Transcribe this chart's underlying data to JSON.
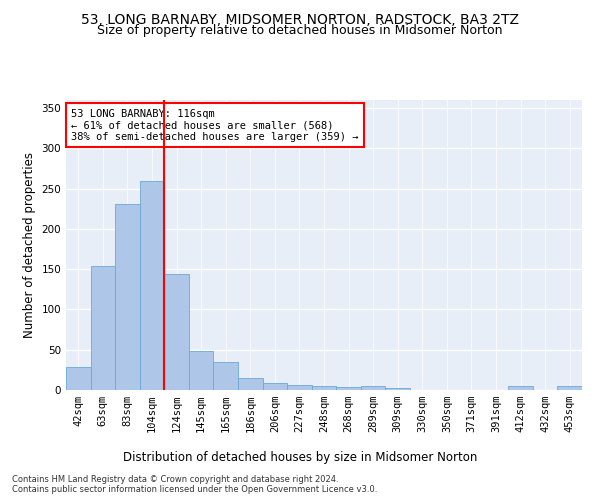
{
  "title": "53, LONG BARNABY, MIDSOMER NORTON, RADSTOCK, BA3 2TZ",
  "subtitle": "Size of property relative to detached houses in Midsomer Norton",
  "xlabel": "Distribution of detached houses by size in Midsomer Norton",
  "ylabel": "Number of detached properties",
  "categories": [
    "42sqm",
    "63sqm",
    "83sqm",
    "104sqm",
    "124sqm",
    "145sqm",
    "165sqm",
    "186sqm",
    "206sqm",
    "227sqm",
    "248sqm",
    "268sqm",
    "289sqm",
    "309sqm",
    "330sqm",
    "350sqm",
    "371sqm",
    "391sqm",
    "412sqm",
    "432sqm",
    "453sqm"
  ],
  "values": [
    28,
    154,
    231,
    260,
    144,
    49,
    35,
    15,
    9,
    6,
    5,
    4,
    5,
    2,
    0,
    0,
    0,
    0,
    5,
    0,
    5
  ],
  "bar_color": "#aec6e8",
  "bar_edge_color": "#6aaad4",
  "vline_x": 3.5,
  "annotation_text": "53 LONG BARNABY: 116sqm\n← 61% of detached houses are smaller (568)\n38% of semi-detached houses are larger (359) →",
  "annotation_box_color": "white",
  "annotation_box_edge_color": "red",
  "vline_color": "red",
  "ylim": [
    0,
    360
  ],
  "yticks": [
    0,
    50,
    100,
    150,
    200,
    250,
    300,
    350
  ],
  "footer": "Contains HM Land Registry data © Crown copyright and database right 2024.\nContains public sector information licensed under the Open Government Licence v3.0.",
  "background_color": "#e8eef8",
  "grid_color": "white",
  "title_fontsize": 10,
  "subtitle_fontsize": 9,
  "xlabel_fontsize": 8.5,
  "ylabel_fontsize": 8.5,
  "tick_fontsize": 7.5,
  "annot_fontsize": 7.5,
  "footer_fontsize": 6
}
